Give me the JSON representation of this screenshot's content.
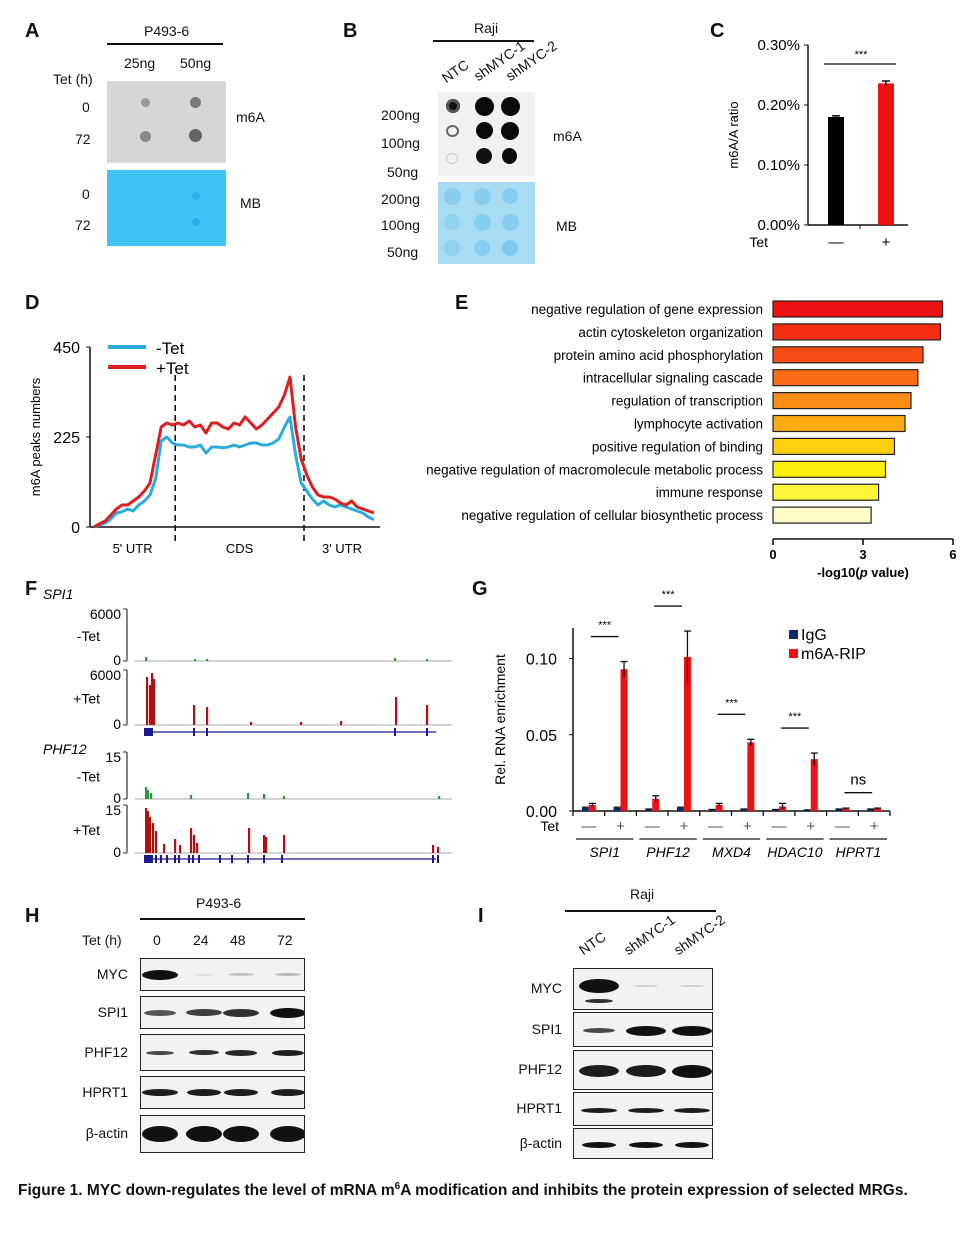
{
  "panels": {
    "A": {
      "label": "A",
      "cell_line": "P493-6",
      "columns": [
        "25ng",
        "50ng"
      ],
      "row_header": "Tet (h)",
      "m6a_rows": [
        "0",
        "72"
      ],
      "mb_rows": [
        "0",
        "72"
      ],
      "m6a_label": "m6A",
      "mb_label": "MB"
    },
    "B": {
      "label": "B",
      "cell_line": "Raji",
      "columns": [
        "NTC",
        "shMYC-1",
        "shMYC-2"
      ],
      "m6a_rows": [
        "200ng",
        "100ng",
        "50ng"
      ],
      "mb_rows": [
        "200ng",
        "100ng",
        "50ng"
      ],
      "m6a_label": "m6A",
      "mb_label": "MB"
    },
    "C": {
      "label": "C"
    },
    "D": {
      "label": "D"
    },
    "E": {
      "label": "E"
    },
    "F": {
      "label": "F",
      "tracks": [
        {
          "gene": "SPI1",
          "condition": "-Tet",
          "ymax": "6000",
          "ymin": "0"
        },
        {
          "gene": "",
          "condition": "+Tet",
          "ymax": "6000",
          "ymin": "0"
        },
        {
          "gene": "PHF12",
          "condition": "-Tet",
          "ymax": "15",
          "ymin": "0"
        },
        {
          "gene": "",
          "condition": "+Tet",
          "ymax": "15",
          "ymin": "0"
        }
      ],
      "colors": {
        "minus_tet": "#2a9a3a",
        "plus_tet": "#b01010",
        "gene_model": "#1a1a8c"
      }
    },
    "G": {
      "label": "G"
    },
    "H": {
      "label": "H",
      "cell_line": "P493-6",
      "row_header": "Tet (h)",
      "columns": [
        "0",
        "24",
        "48",
        "72"
      ],
      "rows": [
        "MYC",
        "SPI1",
        "PHF12",
        "HPRT1",
        "β-actin"
      ]
    },
    "I": {
      "label": "I",
      "cell_line": "Raji",
      "columns": [
        "NTC",
        "shMYC-1",
        "shMYC-2"
      ],
      "rows": [
        "MYC",
        "SPI1",
        "PHF12",
        "HPRT1",
        "β-actin"
      ]
    }
  },
  "caption": {
    "prefix": "Figure 1. MYC down-regulates the level of mRNA m",
    "superscript": "6",
    "suffix": "A modification and inhibits the protein expression of selected MRGs."
  },
  "chart_data": [
    {
      "id": "C",
      "type": "bar",
      "title": "",
      "xlabel": "Tet",
      "ylabel": "m6A/A ratio",
      "categories": [
        "—",
        "+"
      ],
      "values": [
        0.18,
        0.236
      ],
      "errors": [
        0.002,
        0.004
      ],
      "colors": [
        "#000000",
        "#ee1111"
      ],
      "ylim": [
        0,
        0.3
      ],
      "yticks": [
        "0.00%",
        "0.10%",
        "0.20%",
        "0.30%"
      ],
      "ytick_values": [
        0,
        0.1,
        0.2,
        0.3
      ],
      "significance": "***"
    },
    {
      "id": "D",
      "type": "line",
      "ylabel": "m6A peaks numbers",
      "ylim": [
        0,
        450
      ],
      "yticks": [
        0,
        225,
        450
      ],
      "regions": [
        "5' UTR",
        "CDS",
        "3' UTR"
      ],
      "x": [
        0,
        1,
        2,
        3,
        4,
        5,
        6,
        7,
        8,
        9,
        10,
        11,
        12,
        13,
        14,
        15,
        16,
        17,
        18,
        19,
        20,
        21,
        22,
        23,
        24,
        25,
        26,
        27,
        28,
        29,
        30,
        31,
        32,
        33,
        34,
        35,
        36,
        37,
        38,
        39,
        40,
        41,
        42,
        43,
        44,
        45,
        46,
        47,
        48,
        49,
        50
      ],
      "region_boundaries": [
        14.5,
        37.5
      ],
      "legend_position": "top-left",
      "series": [
        {
          "name": "-Tet",
          "color": "#29abe2",
          "values": [
            0,
            5,
            10,
            20,
            35,
            38,
            45,
            40,
            55,
            65,
            80,
            120,
            215,
            225,
            210,
            205,
            205,
            200,
            200,
            205,
            185,
            200,
            200,
            198,
            200,
            205,
            200,
            205,
            210,
            210,
            205,
            205,
            210,
            220,
            250,
            275,
            180,
            110,
            90,
            70,
            55,
            65,
            55,
            50,
            55,
            50,
            45,
            40,
            35,
            25,
            18
          ]
        },
        {
          "name": "+Tet",
          "color": "#dd1f1f",
          "values": [
            0,
            8,
            15,
            30,
            45,
            55,
            55,
            65,
            75,
            90,
            110,
            180,
            250,
            260,
            255,
            260,
            255,
            265,
            250,
            255,
            235,
            260,
            260,
            250,
            245,
            260,
            255,
            275,
            260,
            245,
            255,
            270,
            285,
            300,
            330,
            375,
            250,
            170,
            130,
            100,
            80,
            75,
            75,
            70,
            60,
            55,
            65,
            50,
            45,
            40,
            35
          ]
        }
      ]
    },
    {
      "id": "E",
      "type": "bar",
      "orientation": "horizontal",
      "xlabel": "-log10(p value)",
      "xlim": [
        0,
        6
      ],
      "xticks": [
        0,
        3,
        6
      ],
      "categories": [
        "negative regulation of gene expression",
        "actin cytoskeleton organization",
        "protein amino acid phosphorylation",
        "intracellular signaling cascade",
        "regulation of transcription",
        "lymphocyte activation",
        "positive regulation of binding",
        "negative regulation of macromolecule metabolic process",
        "immune response",
        "negative regulation of cellular biosynthetic process"
      ],
      "values": [
        5.65,
        5.58,
        5.0,
        4.83,
        4.6,
        4.4,
        4.05,
        3.75,
        3.52,
        3.27
      ],
      "colors": [
        "#ee1111",
        "#f52e14",
        "#fa4d14",
        "#fb6a14",
        "#fd8c16",
        "#fdab12",
        "#fdd00e",
        "#ffef11",
        "#fff63a",
        "#fffcc6"
      ]
    },
    {
      "id": "G",
      "type": "bar",
      "ylabel": "Rel. RNA enrichment",
      "ylim": [
        0,
        0.12
      ],
      "yticks": [
        "0.00",
        "0.05",
        "0.10"
      ],
      "ytick_values": [
        0,
        0.05,
        0.1
      ],
      "xrow_label": "Tet",
      "categories": [
        "SPI1",
        "PHF12",
        "MXD4",
        "HDAC10",
        "HPRT1"
      ],
      "tet": [
        "—",
        "+"
      ],
      "legend_position": "top-right",
      "series": [
        {
          "name": "IgG",
          "color": "#0b2a6b",
          "values": [
            0.002,
            0.002,
            0.001,
            0.002,
            0.0008,
            0.001,
            0.0008,
            0.0005,
            0.001,
            0.001
          ],
          "errors": [
            0.0005,
            0.0005,
            0.0003,
            0.0005,
            0.0002,
            0.0003,
            0.0002,
            0.0002,
            0.0003,
            0.0003
          ]
        },
        {
          "name": "m6A-RIP",
          "color": "#ee1111",
          "values": [
            0.004,
            0.093,
            0.008,
            0.101,
            0.004,
            0.045,
            0.003,
            0.034,
            0.0015,
            0.0015
          ],
          "errors": [
            0.001,
            0.005,
            0.002,
            0.017,
            0.001,
            0.002,
            0.002,
            0.004,
            0.0004,
            0.0004
          ]
        }
      ],
      "significance": [
        "***",
        "***",
        "***",
        "***",
        "ns"
      ]
    }
  ]
}
